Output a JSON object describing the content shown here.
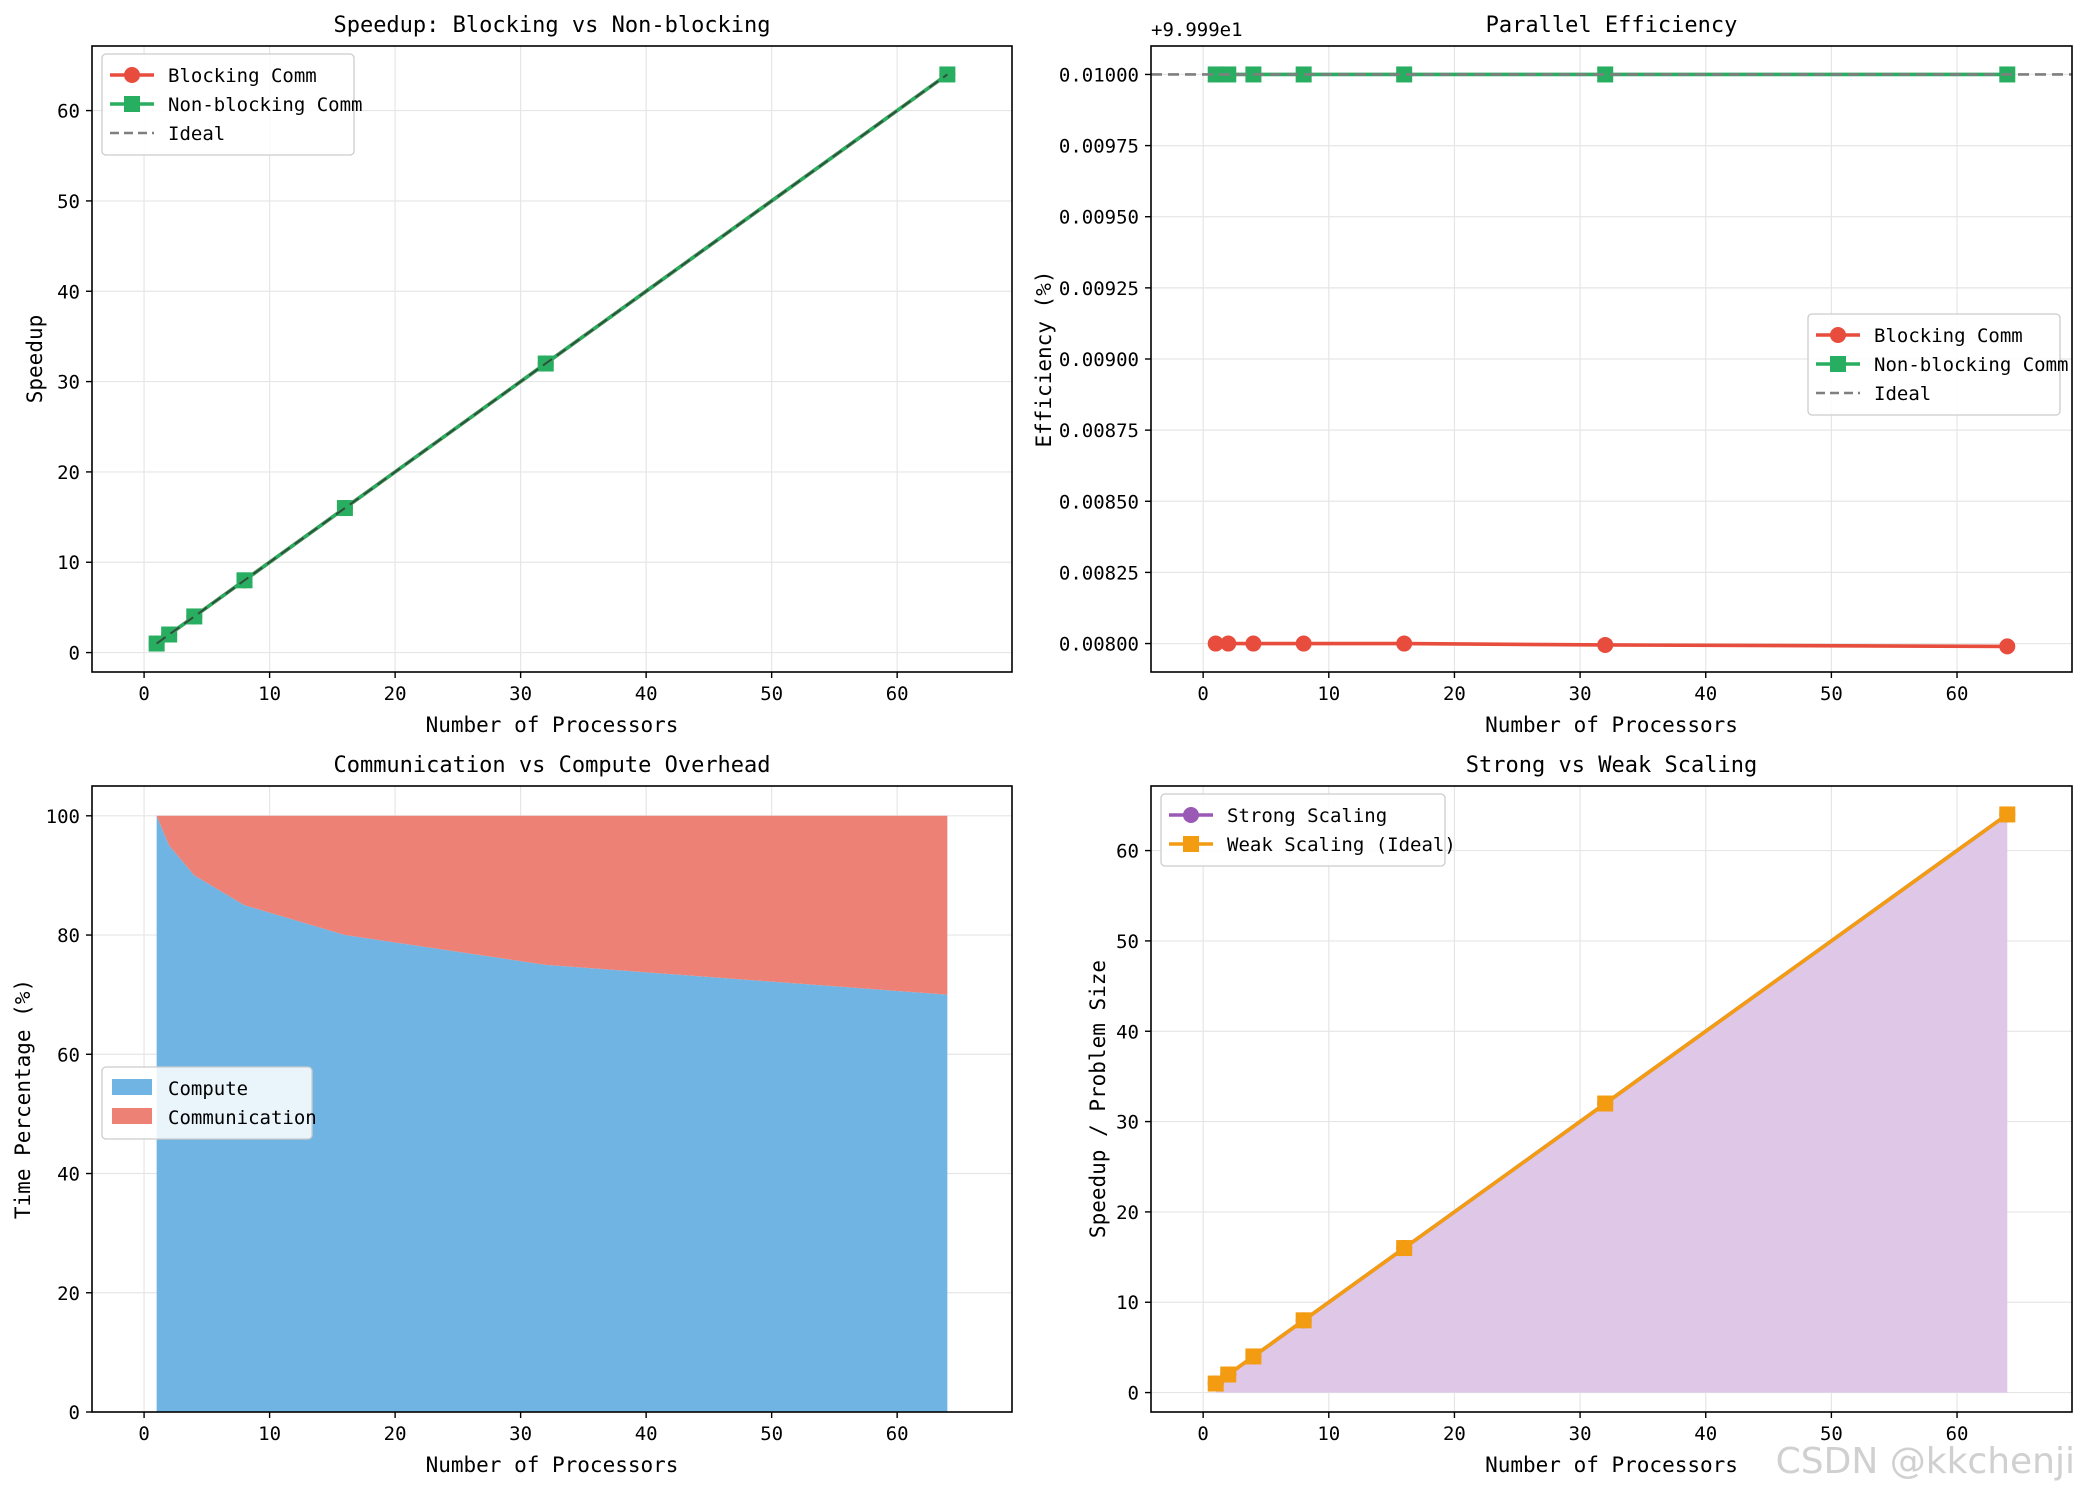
{
  "watermark": "CSDN @kkchenji",
  "colors": {
    "blocking": "#e74c3c",
    "nonblocking": "#27ae60",
    "ideal": "#7f7f7f",
    "compute": "#6fb4e2",
    "communication": "#ed8176",
    "strong": "#9b59b6",
    "weak": "#f39c12",
    "strong_fill": "#dfc8e7",
    "grid": "#e6e6e6"
  },
  "chart_data": [
    {
      "id": "speedup",
      "type": "line",
      "title": "Speedup: Blocking vs Non-blocking",
      "xlabel": "Number of Processors",
      "ylabel": "Speedup",
      "xlim": [
        -4.15,
        69.15
      ],
      "ylim": [
        -2.15,
        67.15
      ],
      "xticks": [
        0,
        10,
        20,
        30,
        40,
        50,
        60
      ],
      "yticks": [
        0,
        10,
        20,
        30,
        40,
        50,
        60
      ],
      "grid": true,
      "legend_position": "top-left",
      "series": [
        {
          "name": "Blocking Comm",
          "marker": "circle",
          "color": "#e74c3c",
          "x": [
            1,
            2,
            4,
            8,
            16,
            32,
            64
          ],
          "y": [
            1,
            2,
            4,
            8,
            16,
            32,
            64
          ]
        },
        {
          "name": "Non-blocking Comm",
          "marker": "square",
          "color": "#27ae60",
          "x": [
            1,
            2,
            4,
            8,
            16,
            32,
            64
          ],
          "y": [
            1,
            2,
            4,
            8,
            16,
            32,
            64
          ]
        },
        {
          "name": "Ideal",
          "marker": "none",
          "dashed": true,
          "color": "#7f7f7f",
          "x": [
            1,
            64
          ],
          "y": [
            1,
            64
          ]
        }
      ]
    },
    {
      "id": "efficiency",
      "type": "line",
      "title": "Parallel Efficiency",
      "xlabel": "Number of Processors",
      "ylabel": "Efficiency (%)",
      "offset_label": "+9.999e1",
      "xlim": [
        -4.15,
        69.15
      ],
      "ylim": [
        0.0079,
        0.0101
      ],
      "xticks": [
        0,
        10,
        20,
        30,
        40,
        50,
        60
      ],
      "yticks": [
        0.008,
        0.00825,
        0.0085,
        0.00875,
        0.009,
        0.00925,
        0.0095,
        0.00975,
        0.01
      ],
      "ytick_labels": [
        "0.00800",
        "0.00825",
        "0.00850",
        "0.00875",
        "0.00900",
        "0.00925",
        "0.00950",
        "0.00975",
        "0.01000"
      ],
      "grid": true,
      "legend_position": "center-right",
      "series": [
        {
          "name": "Blocking Comm",
          "marker": "circle",
          "color": "#e74c3c",
          "x": [
            1,
            2,
            4,
            8,
            16,
            32,
            64
          ],
          "y": [
            0.008,
            0.008,
            0.008,
            0.008,
            0.008,
            0.007995,
            0.00799
          ]
        },
        {
          "name": "Non-blocking Comm",
          "marker": "square",
          "color": "#27ae60",
          "x": [
            1,
            2,
            4,
            8,
            16,
            32,
            64
          ],
          "y": [
            0.01,
            0.01,
            0.01,
            0.01,
            0.01,
            0.01,
            0.01
          ]
        },
        {
          "name": "Ideal",
          "marker": "none",
          "dashed": true,
          "color": "#7f7f7f",
          "x": [
            -4.15,
            69.15
          ],
          "y": [
            0.01,
            0.01
          ]
        }
      ]
    },
    {
      "id": "overhead",
      "type": "area",
      "title": "Communication vs Compute Overhead",
      "xlabel": "Number of Processors",
      "ylabel": "Time Percentage (%)",
      "xlim": [
        -4.15,
        69.15
      ],
      "ylim": [
        0,
        105
      ],
      "xticks": [
        0,
        10,
        20,
        30,
        40,
        50,
        60
      ],
      "yticks": [
        0,
        20,
        40,
        60,
        80,
        100
      ],
      "grid": true,
      "legend_position": "center-left",
      "x": [
        1,
        2,
        4,
        8,
        16,
        32,
        64
      ],
      "series": [
        {
          "name": "Compute",
          "color": "#6fb4e2",
          "values": [
            100,
            95,
            90,
            85,
            80,
            75,
            70
          ]
        },
        {
          "name": "Communication",
          "color": "#ed8176",
          "values": [
            0,
            5,
            10,
            15,
            20,
            25,
            30
          ]
        }
      ]
    },
    {
      "id": "scaling",
      "type": "line",
      "title": "Strong vs Weak Scaling",
      "xlabel": "Number of Processors",
      "ylabel": "Speedup / Problem Size",
      "xlim": [
        -4.15,
        69.15
      ],
      "ylim": [
        -2.15,
        67.15
      ],
      "xticks": [
        0,
        10,
        20,
        30,
        40,
        50,
        60
      ],
      "yticks": [
        0,
        10,
        20,
        30,
        40,
        50,
        60
      ],
      "grid": true,
      "legend_position": "top-left",
      "fill_series": "Strong Scaling",
      "series": [
        {
          "name": "Strong Scaling",
          "marker": "circle",
          "color": "#9b59b6",
          "x": [
            1,
            2,
            4,
            8,
            16,
            32,
            64
          ],
          "y": [
            1,
            2,
            4,
            8,
            16,
            32,
            64
          ]
        },
        {
          "name": "Weak Scaling (Ideal)",
          "marker": "square",
          "color": "#f39c12",
          "x": [
            1,
            2,
            4,
            8,
            16,
            32,
            64
          ],
          "y": [
            1,
            2,
            4,
            8,
            16,
            32,
            64
          ]
        }
      ]
    }
  ]
}
